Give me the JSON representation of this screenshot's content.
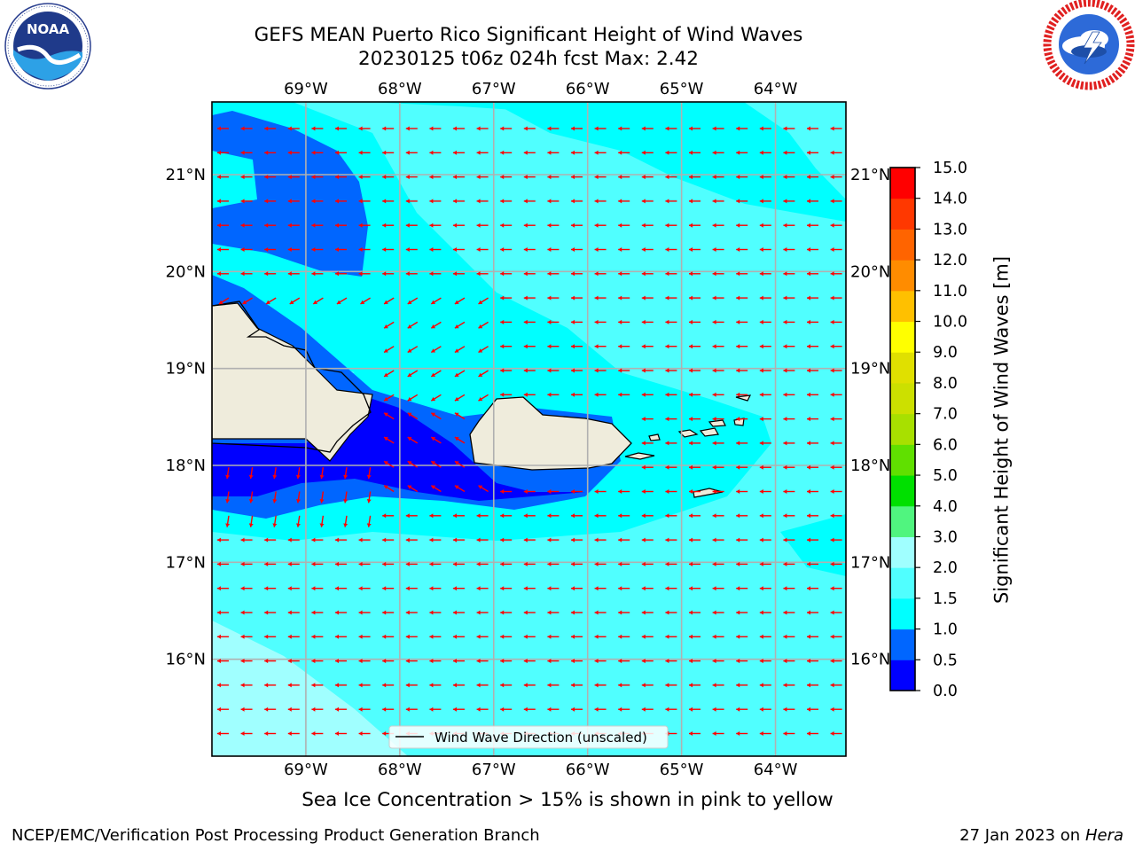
{
  "header": {
    "title_line1": "GEFS MEAN Puerto Rico Significant Height of Wind Waves",
    "title_line2": "20230125 t06z 024h fcst   Max: 2.42"
  },
  "logos": {
    "left": {
      "icon": "noaa-logo",
      "text": "NOAA",
      "ring_text": "NATIONAL OCEANIC AND ATMOSPHERIC ADMINISTRATION · U.S. DEPARTMENT OF COMMERCE"
    },
    "right": {
      "icon": "nws-logo",
      "ring_text": "NATIONAL WEATHER SERVICE"
    }
  },
  "map": {
    "lon_ticks": [
      "69°W",
      "68°W",
      "67°W",
      "66°W",
      "65°W",
      "64°W"
    ],
    "lat_ticks": [
      "21°N",
      "20°N",
      "19°N",
      "18°N",
      "17°N",
      "16°N"
    ],
    "extent": {
      "lon_min": -70.0,
      "lon_max": -63.25,
      "lat_min": 15.0,
      "lat_max": 21.75
    },
    "legend_label": "Wind Wave Direction (unscaled)",
    "arrow_color": "#ff0000",
    "land_color": "#efecdc",
    "grid": true
  },
  "colorbar": {
    "label": "Significant Height of Wind Waves [m]",
    "ticks": [
      "0.0",
      "0.5",
      "1.0",
      "1.5",
      "2.0",
      "3.0",
      "4.0",
      "5.0",
      "6.0",
      "7.0",
      "8.0",
      "9.0",
      "10.0",
      "11.0",
      "12.0",
      "13.0",
      "14.0",
      "15.0"
    ],
    "colors": [
      "#0000ff",
      "#0066ff",
      "#00ffff",
      "#50ffff",
      "#a0ffff",
      "#50f57f",
      "#00e000",
      "#60e000",
      "#a8e000",
      "#cce000",
      "#e0e000",
      "#ffff00",
      "#ffc000",
      "#ff8c00",
      "#ff6400",
      "#ff3800",
      "#ff0000"
    ]
  },
  "caption": "Sea Ice Concentration > 15% is shown in pink to yellow",
  "footer": {
    "left": "NCEP/EMC/Verification Post Processing Product Generation Branch",
    "right_prefix": "27 Jan 2023 on ",
    "right_host": "Hera"
  }
}
